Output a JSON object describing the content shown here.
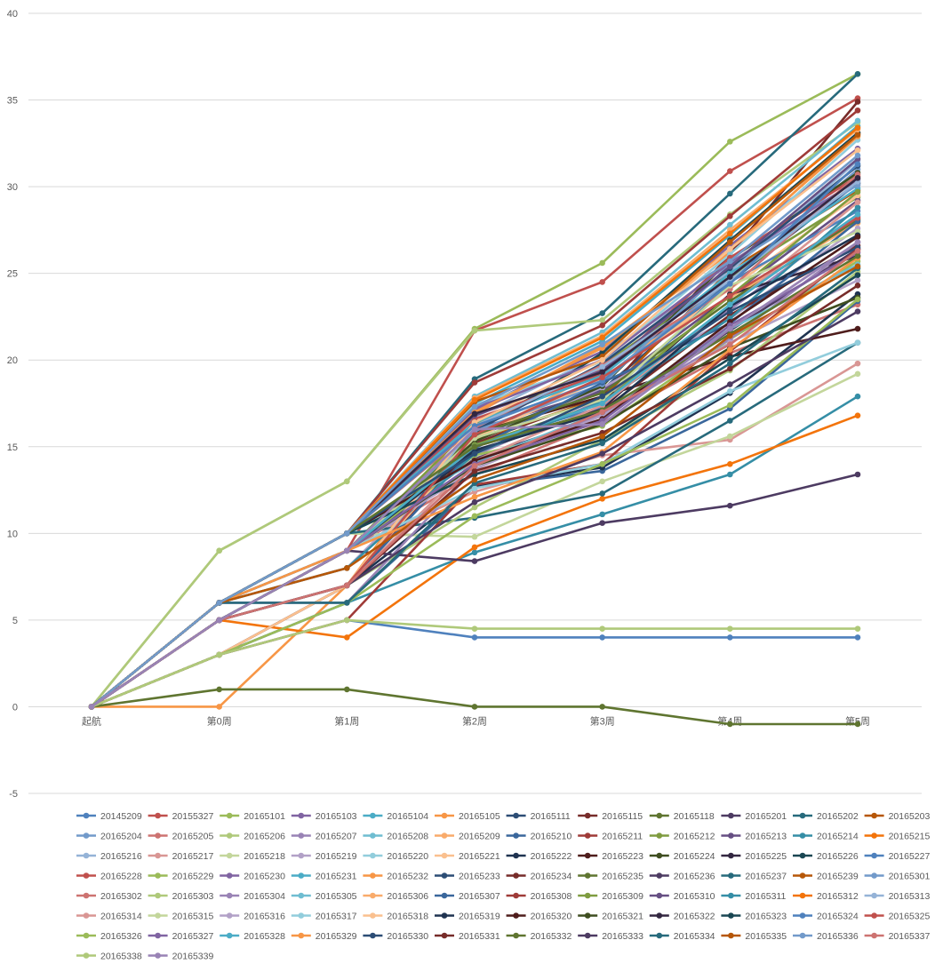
{
  "chart_data": {
    "type": "line",
    "title": "",
    "xlabel": "",
    "ylabel": "",
    "ylim": [
      -5,
      40
    ],
    "yticks": [
      "-5",
      "0",
      "5",
      "10",
      "15",
      "20",
      "25",
      "30",
      "35",
      "40"
    ],
    "categories": [
      "起航",
      "第0周",
      "第1周",
      "第2周",
      "第3周",
      "第4周",
      "第5周"
    ],
    "grid": true,
    "legend_position": "bottom",
    "palette": [
      "#4f81bd",
      "#c0504d",
      "#9bbb59",
      "#8064a2",
      "#4bacc6",
      "#f79646",
      "#2c4d75",
      "#772c2a",
      "#5f7530",
      "#4d3b62",
      "#276a7c",
      "#b65708",
      "#729aca",
      "#cd7371",
      "#afc97a",
      "#9983b5",
      "#6fbdd1",
      "#f9ab6b",
      "#3a679c",
      "#9f3b38",
      "#7f9c40",
      "#664f83",
      "#358ea6",
      "#f3740b",
      "#95b3d7",
      "#d99694",
      "#c3d69b",
      "#b2a1c7",
      "#92cddc",
      "#fac08f",
      "#1f3350",
      "#4f1d1c",
      "#3f4e20",
      "#332741",
      "#1a4753"
    ],
    "series": [
      {
        "name": "20145209",
        "values": [
          0,
          3,
          5,
          4,
          4,
          4,
          4
        ]
      },
      {
        "name": "20155327",
        "values": [
          0,
          5,
          9,
          21.7,
          24.5,
          30.9,
          35.1
        ]
      },
      {
        "name": "20165101",
        "values": [
          0,
          9,
          13,
          21.8,
          25.6,
          32.6,
          36.5
        ]
      },
      {
        "name": "20165103",
        "values": [
          0,
          6,
          10,
          17.2,
          20.5,
          26.6,
          32.2
        ]
      },
      {
        "name": "20165104",
        "values": [
          0,
          6,
          10,
          17.5,
          21.1,
          27.2,
          33.5
        ]
      },
      {
        "name": "20165105",
        "values": [
          0,
          0,
          7,
          16.9,
          20.8,
          26.2,
          33.1
        ]
      },
      {
        "name": "20165111",
        "values": [
          0,
          3,
          7,
          15.6,
          18.3,
          24.5,
          30.2
        ]
      },
      {
        "name": "20165115",
        "values": [
          0,
          5,
          9,
          15.2,
          17.9,
          26.1,
          34.9
        ]
      },
      {
        "name": "20165118",
        "values": [
          0,
          1,
          1,
          0,
          0,
          -1,
          -1
        ]
      },
      {
        "name": "20165201",
        "values": [
          0,
          5,
          9,
          14.3,
          16.8,
          21.7,
          26.4
        ]
      },
      {
        "name": "20165202",
        "values": [
          0,
          6,
          10,
          18.9,
          22.7,
          29.6,
          36.5
        ]
      },
      {
        "name": "20165203",
        "values": [
          0,
          5,
          9,
          15.4,
          17.8,
          25.2,
          29.8
        ]
      },
      {
        "name": "20165204",
        "values": [
          0,
          6,
          10,
          16.1,
          18.9,
          24.6,
          31.0
        ]
      },
      {
        "name": "20165205",
        "values": [
          0,
          5,
          9,
          13.4,
          16.4,
          20.4,
          23.2
        ]
      },
      {
        "name": "20165206",
        "values": [
          0,
          9,
          13,
          21.7,
          22.3,
          28.4,
          33.7
        ]
      },
      {
        "name": "20165207",
        "values": [
          0,
          6,
          10,
          14.5,
          17.7,
          22.9,
          28.3
        ]
      },
      {
        "name": "20165208",
        "values": [
          0,
          6,
          10,
          17.9,
          21.6,
          27.8,
          33.8
        ]
      },
      {
        "name": "20165209",
        "values": [
          0,
          5,
          7,
          15.4,
          19.5,
          23.6,
          27.9
        ]
      },
      {
        "name": "20165210",
        "values": [
          0,
          3,
          6,
          12.7,
          13.6,
          17.2,
          23.4
        ]
      },
      {
        "name": "20165211",
        "values": [
          0,
          6,
          10,
          18.7,
          22.0,
          28.3,
          34.4
        ]
      },
      {
        "name": "20165212",
        "values": [
          0,
          5,
          9,
          16.3,
          19.7,
          24.8,
          29.4
        ]
      },
      {
        "name": "20165213",
        "values": [
          0,
          6,
          9,
          16.0,
          18.2,
          23.7,
          29.2
        ]
      },
      {
        "name": "20165214",
        "values": [
          0,
          3,
          6,
          8.9,
          11.1,
          13.4,
          17.9
        ]
      },
      {
        "name": "20165215",
        "values": [
          0,
          5,
          4,
          9.2,
          12.0,
          14.0,
          16.8
        ]
      },
      {
        "name": "20165216",
        "values": [
          0,
          6,
          10,
          16.7,
          20.3,
          25.1,
          31.5
        ]
      },
      {
        "name": "20165217",
        "values": [
          0,
          5,
          9,
          12.4,
          14.5,
          15.4,
          19.8
        ]
      },
      {
        "name": "20165218",
        "values": [
          0,
          6,
          10,
          9.8,
          13.0,
          15.6,
          19.2
        ]
      },
      {
        "name": "20165219",
        "values": [
          0,
          6,
          8,
          15.3,
          18.4,
          22.4,
          27.6
        ]
      },
      {
        "name": "20165220",
        "values": [
          0,
          6,
          10,
          17.4,
          19.9,
          26.1,
          32.7
        ]
      },
      {
        "name": "20165221",
        "values": [
          0,
          5,
          7,
          15.5,
          18.9,
          24.1,
          29.5
        ]
      },
      {
        "name": "20165222",
        "values": [
          0,
          3,
          7,
          12.7,
          13.8,
          18.1,
          23.8
        ]
      },
      {
        "name": "20165223",
        "values": [
          0,
          5,
          9,
          15.8,
          17.9,
          20.2,
          21.8
        ]
      },
      {
        "name": "20165224",
        "values": [
          0,
          5,
          9,
          15.3,
          18.5,
          25.8,
          30.8
        ]
      },
      {
        "name": "20165225",
        "values": [
          0,
          5,
          9,
          14.7,
          17.2,
          23.8,
          26.0
        ]
      },
      {
        "name": "20165226",
        "values": [
          0,
          3,
          7,
          15.8,
          20.4,
          26.9,
          33.1
        ]
      },
      {
        "name": "20165227",
        "values": [
          0,
          5,
          9,
          15.1,
          17.3,
          24.5,
          28.6
        ]
      },
      {
        "name": "20165228",
        "values": [
          0,
          6,
          10,
          16.6,
          19.2,
          25.9,
          30.6
        ]
      },
      {
        "name": "20165229",
        "values": [
          0,
          5,
          9,
          14.5,
          16.2,
          21.2,
          25.7
        ]
      },
      {
        "name": "20165230",
        "values": [
          0,
          6,
          10,
          17.1,
          20.0,
          25.6,
          30.4
        ]
      },
      {
        "name": "20165231",
        "values": [
          0,
          6,
          10,
          16.4,
          19.1,
          25.0,
          29.9
        ]
      },
      {
        "name": "20165232",
        "values": [
          0,
          6,
          10,
          17.0,
          20.7,
          26.4,
          32.9
        ]
      },
      {
        "name": "20165233",
        "values": [
          0,
          5,
          7,
          15.9,
          19.8,
          25.3,
          31.2
        ]
      },
      {
        "name": "20165234",
        "values": [
          0,
          3,
          7,
          15.0,
          17.1,
          22.6,
          26.6
        ]
      },
      {
        "name": "20165235",
        "values": [
          0,
          5,
          9,
          15.7,
          18.1,
          23.4,
          28.1
        ]
      },
      {
        "name": "20165236",
        "values": [
          0,
          6,
          9,
          8.4,
          10.6,
          11.6,
          13.4
        ]
      },
      {
        "name": "20165237",
        "values": [
          0,
          6,
          10,
          10.9,
          12.3,
          16.5,
          21.0
        ]
      },
      {
        "name": "20165239",
        "values": [
          0,
          6,
          10,
          17.6,
          20.2,
          26.8,
          33.0
        ]
      },
      {
        "name": "20165301",
        "values": [
          0,
          5,
          9,
          15.9,
          18.6,
          25.5,
          30.1
        ]
      },
      {
        "name": "20165302",
        "values": [
          0,
          6,
          10,
          16.1,
          19.7,
          24.1,
          30.7
        ]
      },
      {
        "name": "20165303",
        "values": [
          0,
          5,
          7,
          11.5,
          15.4,
          19.4,
          25.1
        ]
      },
      {
        "name": "20165304",
        "values": [
          0,
          6,
          6,
          13.7,
          16.9,
          21.2,
          26.8
        ]
      },
      {
        "name": "20165305",
        "values": [
          0,
          6,
          10,
          14.1,
          17.0,
          21.8,
          25.5
        ]
      },
      {
        "name": "20165306",
        "values": [
          0,
          6,
          10,
          17.8,
          21.4,
          27.5,
          33.3
        ]
      },
      {
        "name": "20165307",
        "values": [
          0,
          5,
          7,
          14.9,
          18.7,
          22.1,
          28.0
        ]
      },
      {
        "name": "20165308",
        "values": [
          0,
          3,
          5,
          12.8,
          14.0,
          20.5,
          26.4
        ]
      },
      {
        "name": "20165309",
        "values": [
          0,
          5,
          9,
          15.1,
          17.5,
          23.7,
          29.7
        ]
      },
      {
        "name": "20165310",
        "values": [
          0,
          6,
          10,
          16.8,
          19.4,
          25.4,
          31.6
        ]
      },
      {
        "name": "20165311",
        "values": [
          0,
          6,
          8,
          14.6,
          17.6,
          22.4,
          28.8
        ]
      },
      {
        "name": "20165312",
        "values": [
          0,
          6,
          10,
          17.7,
          21.3,
          27.3,
          33.4
        ]
      },
      {
        "name": "20165313",
        "values": [
          0,
          5,
          7,
          16.2,
          19.6,
          24.6,
          30.3
        ]
      },
      {
        "name": "20165314",
        "values": [
          0,
          3,
          7,
          14.2,
          17.4,
          23.1,
          29.1
        ]
      },
      {
        "name": "20165315",
        "values": [
          0,
          5,
          9,
          15.5,
          17.7,
          24.3,
          27.4
        ]
      },
      {
        "name": "20165316",
        "values": [
          0,
          5,
          9,
          13.7,
          16.8,
          21.0,
          24.6
        ]
      },
      {
        "name": "20165317",
        "values": [
          0,
          5,
          9,
          12.6,
          14.0,
          18.2,
          21.0
        ]
      },
      {
        "name": "20165318",
        "values": [
          0,
          3,
          7,
          16.4,
          20.0,
          26.4,
          32.1
        ]
      },
      {
        "name": "20165319",
        "values": [
          0,
          5,
          9,
          14.8,
          17.0,
          23.1,
          27.2
        ]
      },
      {
        "name": "20165320",
        "values": [
          0,
          6,
          10,
          14.2,
          16.6,
          22.2,
          27.1
        ]
      },
      {
        "name": "20165321",
        "values": [
          0,
          5,
          9,
          13.9,
          16.3,
          20.7,
          23.6
        ]
      },
      {
        "name": "20165322",
        "values": [
          0,
          6,
          10,
          16.9,
          19.3,
          24.8,
          30.5
        ]
      },
      {
        "name": "20165323",
        "values": [
          0,
          6,
          10,
          13.4,
          15.4,
          20.1,
          24.9
        ]
      },
      {
        "name": "20165324",
        "values": [
          0,
          6,
          10,
          16.2,
          18.8,
          24.4,
          31.3
        ]
      },
      {
        "name": "20165325",
        "values": [
          0,
          5,
          7,
          15.7,
          19.0,
          23.7,
          28.2
        ]
      },
      {
        "name": "20165326",
        "values": [
          0,
          3,
          6,
          11.0,
          14.0,
          17.4,
          23.5
        ]
      },
      {
        "name": "20165327",
        "values": [
          0,
          5,
          9,
          14.0,
          16.5,
          22.0,
          26.2
        ]
      },
      {
        "name": "20165328",
        "values": [
          0,
          6,
          9,
          15.0,
          17.5,
          23.2,
          28.4
        ]
      },
      {
        "name": "20165329",
        "values": [
          0,
          6,
          9,
          12.1,
          14.7,
          20.6,
          25.9
        ]
      },
      {
        "name": "20165330",
        "values": [
          0,
          6,
          10,
          14.6,
          17.9,
          22.8,
          26.5
        ]
      },
      {
        "name": "20165331",
        "values": [
          0,
          5,
          7,
          13.6,
          15.8,
          19.5,
          24.3
        ]
      },
      {
        "name": "20165332",
        "values": [
          0,
          6,
          10,
          15.0,
          17.1,
          21.5,
          26.0
        ]
      },
      {
        "name": "20165333",
        "values": [
          0,
          5,
          7,
          11.8,
          14.6,
          18.6,
          22.8
        ]
      },
      {
        "name": "20165334",
        "values": [
          0,
          6,
          6,
          12.9,
          15.2,
          19.8,
          25.3
        ]
      },
      {
        "name": "20165335",
        "values": [
          0,
          6,
          8,
          13.1,
          15.6,
          21.4,
          25.4
        ]
      },
      {
        "name": "20165336",
        "values": [
          0,
          6,
          10,
          17.3,
          20.9,
          25.7,
          31.8
        ]
      },
      {
        "name": "20165337",
        "values": [
          0,
          5,
          7,
          13.9,
          17.0,
          20.9,
          26.3
        ]
      },
      {
        "name": "20165338",
        "values": [
          0,
          3,
          5,
          4.5,
          4.5,
          4.5,
          4.5
        ]
      },
      {
        "name": "20165339",
        "values": [
          0,
          5,
          9,
          16.0,
          16.3,
          21.8,
          26.8
        ]
      }
    ]
  }
}
